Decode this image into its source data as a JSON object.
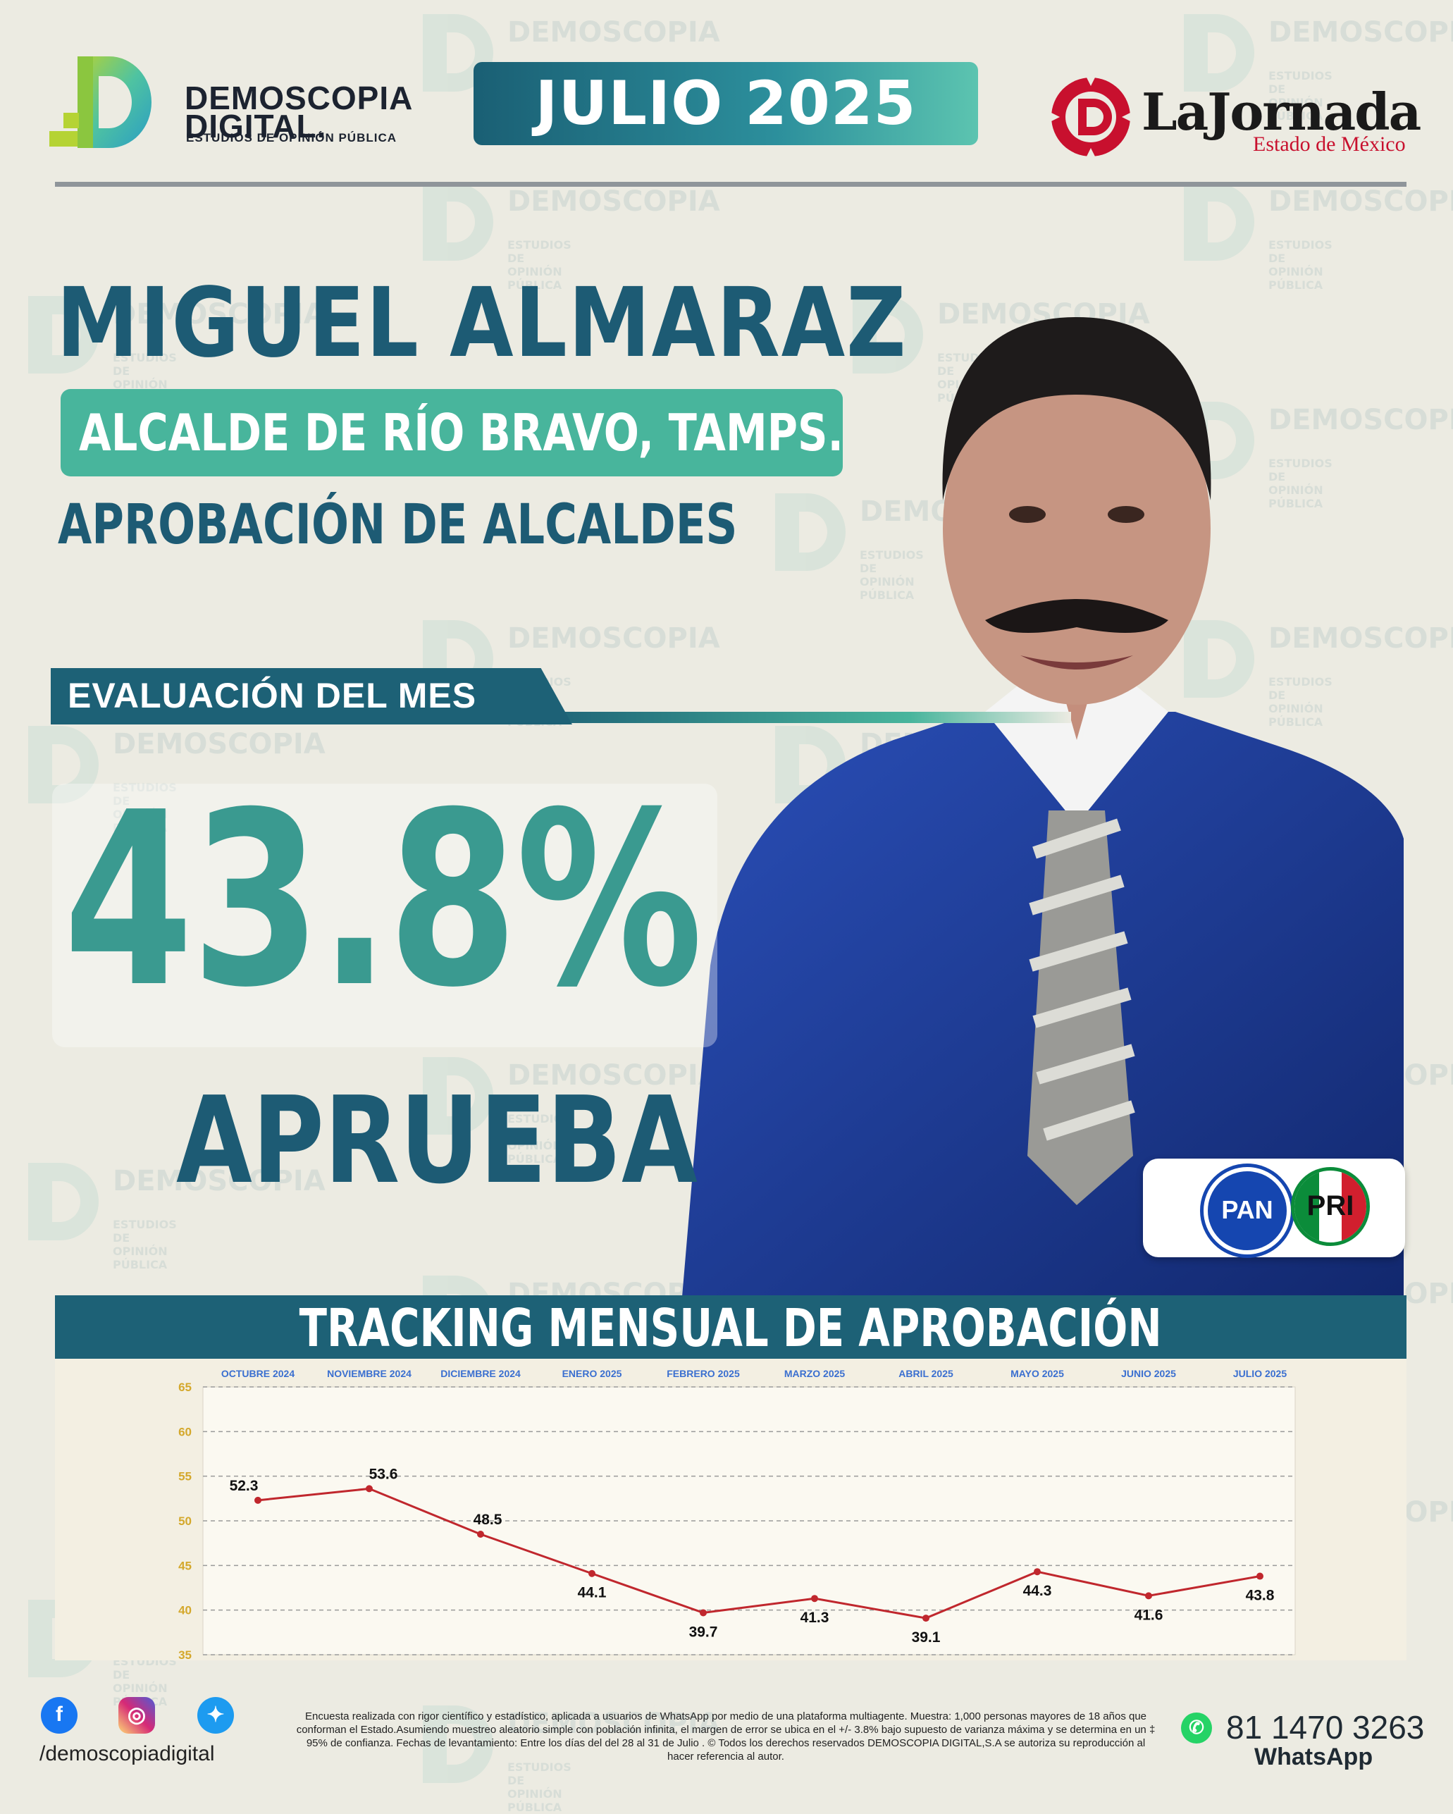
{
  "brand": {
    "name_line1": "DEMOSCOPIA",
    "name_line2": "DIGITAL.",
    "tagline": "ESTUDIOS DE OPINIÓN PÚBLICA"
  },
  "month_badge": "JULIO 2025",
  "partner": {
    "name": "LaJornada",
    "sub": "Estado de México"
  },
  "person": {
    "name": "MIGUEL ALMARAZ",
    "role": "ALCALDE DE RÍO BRAVO, TAMPS.",
    "subtitle": "APROBACIÓN DE ALCALDES"
  },
  "evaluation": {
    "label": "EVALUACIÓN DEL MES",
    "value": "43.8%",
    "caption": "APRUEBA"
  },
  "parties": [
    "PAN",
    "PRI"
  ],
  "tracking_title": "TRACKING MENSUAL DE APROBACIÓN",
  "chart_data": {
    "type": "line",
    "title": "TRACKING MENSUAL DE APROBACIÓN",
    "categories": [
      "OCTUBRE 2024",
      "NOVIEMBRE 2024",
      "DICIEMBRE 2024",
      "ENERO 2025",
      "FEBRERO 2025",
      "MARZO 2025",
      "ABRIL 2025",
      "MAYO 2025",
      "JUNIO 2025",
      "JULIO 2025"
    ],
    "values": [
      52.3,
      53.6,
      48.5,
      44.1,
      39.7,
      41.3,
      39.1,
      44.3,
      41.6,
      43.8
    ],
    "yticks": [
      65,
      60,
      55,
      50,
      45,
      40,
      35
    ],
    "ylim": [
      35,
      65
    ],
    "grid": true,
    "color": "#c0272d"
  },
  "footer": {
    "handle": "/demoscopiadigital",
    "disclaimer": "Encuesta realizada con rigor científico y estadístico, aplicada a usuarios de WhatsApp por medio de una plataforma multiagente. Muestra: 1,000 personas mayores de 18 años que conforman el Estado.Asumiendo muestreo aleatorio simple con población infinita, el margen de error se ubica en el +/- 3.8% bajo supuesto de varianza máxima y se determina en un ‡ 95% de confianza. Fechas de levantamiento: Entre los días del del 28 al 31 de Julio . © Todos los derechos reservados DEMOSCOPIA DIGITAL,S.A se autoriza su reproducción al hacer referencia al autor.",
    "phone": "81 1470 3263",
    "whatsapp_label": "WhatsApp"
  }
}
